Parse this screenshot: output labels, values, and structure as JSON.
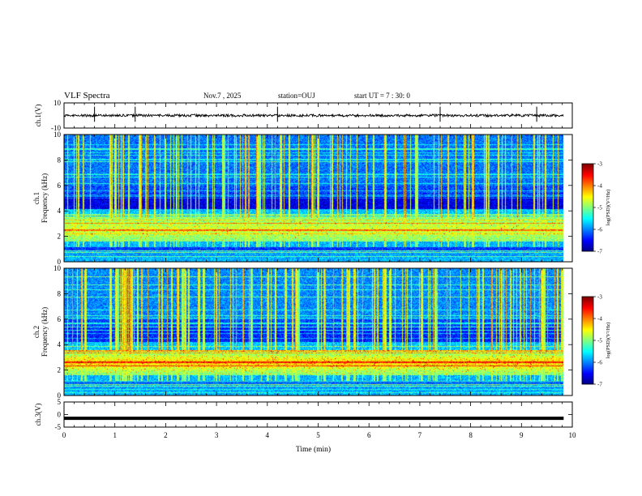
{
  "header": {
    "title": "VLF Spectra",
    "date": "Nov.7 , 2025",
    "station": "station=OUJ",
    "start": "start UT = 7 : 30: 0"
  },
  "chart_data": [
    {
      "type": "line",
      "name": "ch1-waveform",
      "title": "VLF Spectra",
      "ylabel": "ch.1(V)",
      "ylim": [
        -10,
        10
      ],
      "yticks": [
        "10",
        "-10"
      ],
      "xlim": [
        0,
        10
      ],
      "baseline": 0,
      "description_values": {
        "noise_level": 1,
        "spike_times": [
          0.6,
          1.4,
          4.2,
          7.4,
          9.3
        ]
      }
    },
    {
      "type": "heatmap",
      "name": "ch1-spectrogram",
      "ylabel": "ch.1\nFrequency (kHz)",
      "ylabel_line1": "ch.1",
      "ylabel_line2": "Frequency (kHz)",
      "ylim": [
        0,
        10
      ],
      "yticks": [
        "0",
        "2",
        "4",
        "6",
        "8",
        "10"
      ],
      "xlim": [
        0,
        10
      ],
      "colorbar": {
        "label": "log(PSD)(V²/Hz)",
        "range": [
          -7,
          -3
        ],
        "ticks": [
          "-3",
          "-4",
          "-5",
          "-6",
          "-7"
        ]
      }
    },
    {
      "type": "heatmap",
      "name": "ch2-spectrogram",
      "ylabel": "ch.2\nFrequency (kHz)",
      "ylabel_line1": "ch.2",
      "ylabel_line2": "Frequency (kHz)",
      "ylim": [
        0,
        10
      ],
      "yticks": [
        "0",
        "2",
        "4",
        "6",
        "8",
        "10"
      ],
      "xlim": [
        0,
        10
      ],
      "colorbar": {
        "label": "log(PSD)(V²/Hz)",
        "range": [
          -7,
          -3
        ],
        "ticks": [
          "-3",
          "-4",
          "-5",
          "-6",
          "-7"
        ]
      }
    },
    {
      "type": "line",
      "name": "ch3-waveform",
      "ylabel": "ch.3(V)",
      "ylim": [
        -5,
        5
      ],
      "yticks": [
        "5",
        "0",
        "-5"
      ],
      "xlim": [
        0,
        10
      ],
      "baseline": -1.5
    }
  ],
  "xaxis": {
    "label": "Time (min)",
    "ticks": [
      "0",
      "1",
      "2",
      "3",
      "4",
      "5",
      "6",
      "7",
      "8",
      "9",
      "10"
    ],
    "data_end": 9.83
  }
}
